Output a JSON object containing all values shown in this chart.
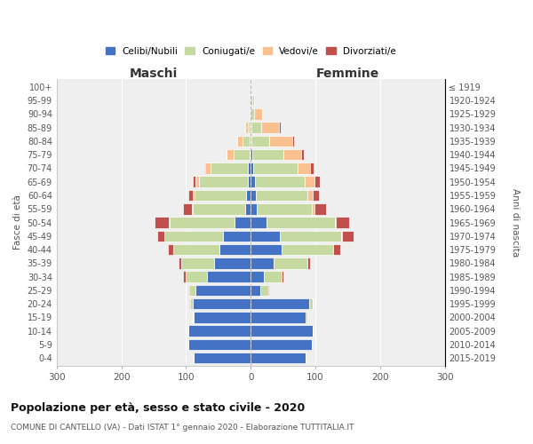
{
  "age_groups": [
    "0-4",
    "5-9",
    "10-14",
    "15-19",
    "20-24",
    "25-29",
    "30-34",
    "35-39",
    "40-44",
    "45-49",
    "50-54",
    "55-59",
    "60-64",
    "65-69",
    "70-74",
    "75-79",
    "80-84",
    "85-89",
    "90-94",
    "95-99",
    "100+"
  ],
  "birth_years": [
    "2015-2019",
    "2010-2014",
    "2005-2009",
    "2000-2004",
    "1995-1999",
    "1990-1994",
    "1985-1989",
    "1980-1984",
    "1975-1979",
    "1970-1974",
    "1965-1969",
    "1960-1964",
    "1955-1959",
    "1950-1954",
    "1945-1949",
    "1940-1944",
    "1935-1939",
    "1930-1934",
    "1925-1929",
    "1920-1924",
    "≤ 1919"
  ],
  "maschi": {
    "celibi": [
      88,
      97,
      96,
      88,
      90,
      85,
      68,
      57,
      48,
      43,
      25,
      9,
      7,
      5,
      4,
      2,
      1,
      1,
      0,
      0,
      0
    ],
    "coniugati": [
      0,
      0,
      1,
      2,
      4,
      10,
      33,
      50,
      72,
      90,
      100,
      80,
      80,
      75,
      58,
      25,
      12,
      3,
      1,
      0,
      0
    ],
    "vedovi": [
      0,
      0,
      0,
      0,
      0,
      0,
      0,
      0,
      0,
      0,
      2,
      2,
      3,
      5,
      8,
      10,
      8,
      4,
      1,
      0,
      0
    ],
    "divorziati": [
      0,
      0,
      0,
      0,
      1,
      2,
      3,
      5,
      8,
      12,
      22,
      14,
      6,
      5,
      2,
      0,
      0,
      0,
      0,
      0,
      0
    ]
  },
  "femmine": {
    "nubili": [
      85,
      95,
      96,
      85,
      90,
      15,
      20,
      35,
      48,
      45,
      25,
      10,
      8,
      6,
      4,
      2,
      1,
      1,
      0,
      0,
      0
    ],
    "coniugate": [
      0,
      0,
      0,
      2,
      6,
      12,
      28,
      52,
      80,
      95,
      105,
      85,
      80,
      78,
      68,
      48,
      28,
      15,
      5,
      2,
      0
    ],
    "vedove": [
      0,
      0,
      0,
      0,
      0,
      0,
      0,
      0,
      0,
      1,
      2,
      4,
      8,
      15,
      20,
      28,
      35,
      28,
      12,
      3,
      0
    ],
    "divorziate": [
      0,
      0,
      0,
      0,
      0,
      1,
      3,
      5,
      10,
      18,
      20,
      18,
      10,
      8,
      5,
      4,
      3,
      2,
      0,
      0,
      0
    ]
  },
  "colors": {
    "celibi": "#4472C4",
    "coniugati": "#C6D9A0",
    "vedovi": "#FAC090",
    "divorziati": "#C0504D"
  },
  "title": "Popolazione per età, sesso e stato civile - 2020",
  "subtitle": "COMUNE DI CANTELLO (VA) - Dati ISTAT 1° gennaio 2020 - Elaborazione TUTTITALIA.IT",
  "xlabel_left": "Maschi",
  "xlabel_right": "Femmine",
  "ylabel_left": "Fasce di età",
  "ylabel_right": "Anni di nascita",
  "legend_labels": [
    "Celibi/Nubili",
    "Coniugati/e",
    "Vedovi/e",
    "Divorziati/e"
  ],
  "xlim": 300,
  "bg_color": "#ffffff",
  "plot_bg": "#efefef",
  "grid_color": "#ffffff"
}
